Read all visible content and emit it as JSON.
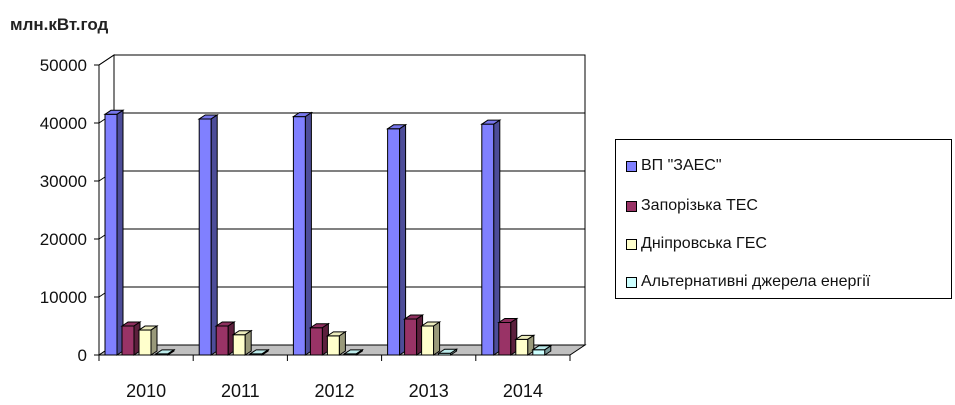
{
  "chart_data": {
    "type": "bar",
    "unit_label": "млн.кВт.год",
    "categories": [
      "2010",
      "2011",
      "2012",
      "2013",
      "2014"
    ],
    "series": [
      {
        "name": "ВП \"ЗАЕС\"",
        "values": [
          41500,
          40700,
          41100,
          39000,
          39800
        ],
        "color": "#8080ff"
      },
      {
        "name": "Запорізька ТЕС",
        "values": [
          5000,
          5000,
          4700,
          6200,
          5600
        ],
        "color": "#993366"
      },
      {
        "name": "Дніпровська ГЕС",
        "values": [
          4300,
          3500,
          3300,
          5000,
          2700
        ],
        "color": "#ffffcc"
      },
      {
        "name": "Альтернативні джерела енергії",
        "values": [
          200,
          200,
          200,
          300,
          900
        ],
        "color": "#ccffff"
      }
    ],
    "yticks": [
      "0",
      "10000",
      "20000",
      "30000",
      "40000",
      "50000"
    ],
    "ylim": [
      0,
      50000
    ],
    "grid": true,
    "legend_position": "right",
    "style": "3d-clustered-column"
  }
}
